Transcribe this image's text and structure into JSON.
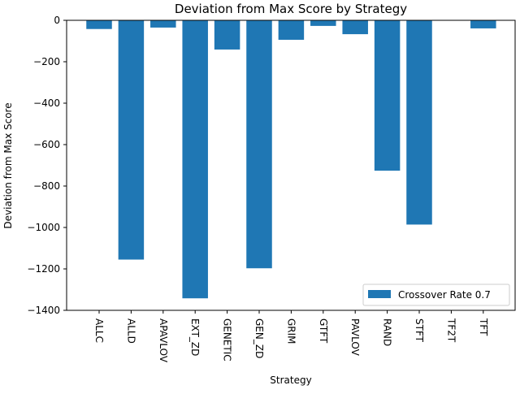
{
  "chart_data": {
    "type": "bar",
    "title": "Deviation from Max Score by Strategy",
    "xlabel": "Strategy",
    "ylabel": "Deviation from Max Score",
    "categories": [
      "ALLC",
      "ALLD",
      "APAVLOV",
      "EXT_ZD",
      "GENETIC",
      "GEN_ZD",
      "GRIM",
      "GTFT",
      "PAVLOV",
      "RAND",
      "STFT",
      "TF2T",
      "TFT"
    ],
    "series": [
      {
        "name": "Crossover Rate 0.7",
        "values": [
          -42,
          -1155,
          -35,
          -1342,
          -141,
          -1197,
          -94,
          -27,
          -67,
          -726,
          -986,
          0,
          -39
        ],
        "color": "#1f77b4"
      }
    ],
    "ylim": [
      -1400,
      0
    ],
    "yticks": [
      0,
      -200,
      -400,
      -600,
      -800,
      -1000,
      -1200,
      -1400
    ],
    "ytick_labels": [
      "0",
      "−200",
      "−400",
      "−600",
      "−800",
      "−1000",
      "−1200",
      "−1400"
    ],
    "grid": false,
    "legend": "bottom-right"
  }
}
